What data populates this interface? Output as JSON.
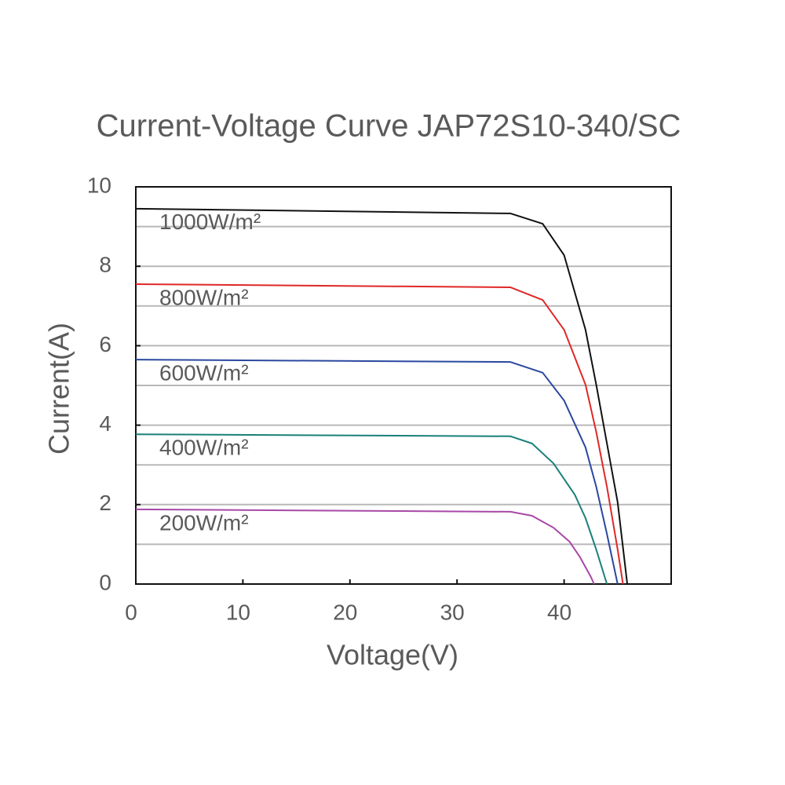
{
  "chart_data": {
    "type": "line",
    "title": "Current-Voltage Curve    JAP72S10-340/SC",
    "x_label": "Voltage(V)",
    "y_label": "Current(A)",
    "xlim": [
      0,
      50
    ],
    "ylim": [
      0,
      10
    ],
    "xticks": [
      0,
      10,
      20,
      30,
      40
    ],
    "yticks": [
      0,
      2,
      4,
      6,
      8,
      10
    ],
    "ygrid": [
      1,
      2,
      3,
      4,
      5,
      6,
      7,
      8,
      9
    ],
    "series": [
      {
        "name": "1000W/m²",
        "color": "#111111",
        "x": [
          0,
          35,
          38,
          40,
          42,
          43,
          44,
          45,
          45.9
        ],
        "values": [
          9.45,
          9.33,
          9.07,
          8.28,
          6.4,
          5.02,
          3.54,
          2.06,
          0
        ]
      },
      {
        "name": "800W/m²",
        "color": "#e02828",
        "x": [
          0,
          35,
          38,
          40,
          42,
          43,
          44,
          45,
          45.5
        ],
        "values": [
          7.55,
          7.47,
          7.15,
          6.4,
          5.02,
          3.83,
          2.45,
          0.87,
          0
        ]
      },
      {
        "name": "600W/m²",
        "color": "#2a48a0",
        "x": [
          0,
          35,
          38,
          40,
          42,
          43,
          44,
          45
        ],
        "values": [
          5.65,
          5.59,
          5.32,
          4.62,
          3.44,
          2.45,
          1.26,
          0
        ]
      },
      {
        "name": "400W/m²",
        "color": "#1a8078",
        "x": [
          0,
          35,
          37,
          39,
          41,
          42,
          43,
          44
        ],
        "values": [
          3.77,
          3.72,
          3.54,
          3.04,
          2.25,
          1.66,
          0.87,
          0
        ]
      },
      {
        "name": "200W/m²",
        "color": "#a848a8",
        "x": [
          0,
          35,
          37,
          39,
          40.5,
          41.5,
          42.5,
          42.8
        ],
        "values": [
          1.88,
          1.82,
          1.72,
          1.42,
          1.07,
          0.67,
          0.18,
          0
        ]
      }
    ]
  }
}
